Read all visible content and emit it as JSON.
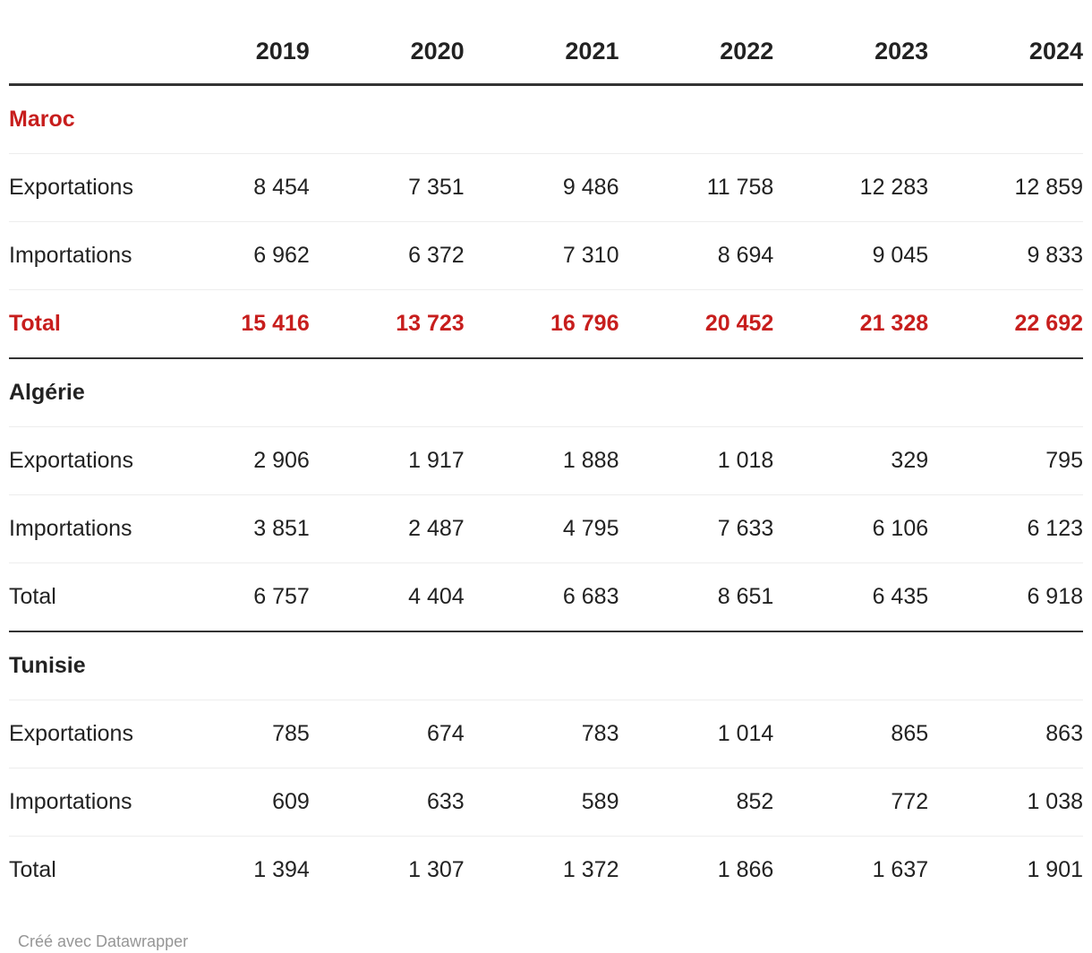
{
  "colors": {
    "accent_red": "#c71e1d",
    "text": "#222222",
    "divider_light": "#ededed",
    "divider_dark": "#333333",
    "footer_gray": "#969696"
  },
  "table": {
    "columns": [
      "",
      "2019",
      "2020",
      "2021",
      "2022",
      "2023",
      "2024"
    ],
    "sections": [
      {
        "label": "Maroc",
        "accent": true,
        "rows": [
          {
            "label": "Exportations",
            "accent": false,
            "values": [
              "8 454",
              "7 351",
              "9 486",
              "11 758",
              "12 283",
              "12 859"
            ]
          },
          {
            "label": "Importations",
            "accent": false,
            "values": [
              "6 962",
              "6 372",
              "7 310",
              "8 694",
              "9 045",
              "9 833"
            ]
          },
          {
            "label": "Total",
            "accent": true,
            "values": [
              "15 416",
              "13 723",
              "16 796",
              "20 452",
              "21 328",
              "22 692"
            ]
          }
        ]
      },
      {
        "label": "Algérie",
        "accent": false,
        "rows": [
          {
            "label": "Exportations",
            "accent": false,
            "values": [
              "2 906",
              "1 917",
              "1 888",
              "1 018",
              "329",
              "795"
            ]
          },
          {
            "label": "Importations",
            "accent": false,
            "values": [
              "3 851",
              "2 487",
              "4 795",
              "7 633",
              "6 106",
              "6 123"
            ]
          },
          {
            "label": "Total",
            "accent": false,
            "values": [
              "6 757",
              "4 404",
              "6 683",
              "8 651",
              "6 435",
              "6 918"
            ]
          }
        ]
      },
      {
        "label": "Tunisie",
        "accent": false,
        "rows": [
          {
            "label": "Exportations",
            "accent": false,
            "values": [
              "785",
              "674",
              "783",
              "1 014",
              "865",
              "863"
            ]
          },
          {
            "label": "Importations",
            "accent": false,
            "values": [
              "609",
              "633",
              "589",
              "852",
              "772",
              "1 038"
            ]
          },
          {
            "label": "Total",
            "accent": false,
            "values": [
              "1 394",
              "1 307",
              "1 372",
              "1 866",
              "1 637",
              "1 901"
            ]
          }
        ]
      }
    ]
  },
  "footer": {
    "credit": "Créé avec Datawrapper"
  },
  "chart_data": {
    "type": "table",
    "title": "",
    "categories": [
      "2019",
      "2020",
      "2021",
      "2022",
      "2023",
      "2024"
    ],
    "series": [
      {
        "name": "Maroc - Exportations",
        "values": [
          8454,
          7351,
          9486,
          11758,
          12283,
          12859
        ]
      },
      {
        "name": "Maroc - Importations",
        "values": [
          6962,
          6372,
          7310,
          8694,
          9045,
          9833
        ]
      },
      {
        "name": "Maroc - Total",
        "values": [
          15416,
          13723,
          16796,
          20452,
          21328,
          22692
        ]
      },
      {
        "name": "Algérie - Exportations",
        "values": [
          2906,
          1917,
          1888,
          1018,
          329,
          795
        ]
      },
      {
        "name": "Algérie - Importations",
        "values": [
          3851,
          2487,
          4795,
          7633,
          6106,
          6123
        ]
      },
      {
        "name": "Algérie - Total",
        "values": [
          6757,
          4404,
          6683,
          8651,
          6435,
          6918
        ]
      },
      {
        "name": "Tunisie - Exportations",
        "values": [
          785,
          674,
          783,
          1014,
          865,
          863
        ]
      },
      {
        "name": "Tunisie - Importations",
        "values": [
          609,
          633,
          589,
          852,
          772,
          1038
        ]
      },
      {
        "name": "Tunisie - Total",
        "values": [
          1394,
          1307,
          1372,
          1866,
          1637,
          1901
        ]
      }
    ],
    "layout_hints": {
      "grid": "horizontal row dividers only",
      "header_rule": "thick dark line under year header",
      "section_rule": "dark line after Maroc Total and Algérie Total",
      "accent_rows": [
        "Maroc section label",
        "Maroc Total row"
      ]
    }
  }
}
